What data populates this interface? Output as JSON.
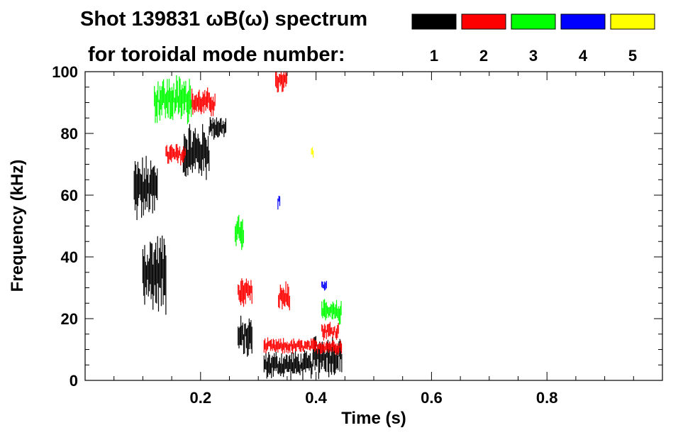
{
  "chart_data": {
    "type": "spectrogram",
    "title_line1": "Shot 139831 ωB(ω) spectrum",
    "title_line2": "for toroidal mode number:",
    "xlabel": "Time (s)",
    "ylabel": "Frequency (kHz)",
    "xlim": [
      0.0,
      1.0
    ],
    "ylim": [
      0,
      100
    ],
    "x_ticks": [
      {
        "value": 0.2,
        "label": "0.2"
      },
      {
        "value": 0.4,
        "label": "0.4"
      },
      {
        "value": 0.6,
        "label": "0.6"
      },
      {
        "value": 0.8,
        "label": "0.8"
      }
    ],
    "y_ticks": [
      {
        "value": 0,
        "label": "0"
      },
      {
        "value": 20,
        "label": "20"
      },
      {
        "value": 40,
        "label": "40"
      },
      {
        "value": 60,
        "label": "60"
      },
      {
        "value": 80,
        "label": "80"
      },
      {
        "value": 100,
        "label": "100"
      }
    ],
    "legend": [
      {
        "mode": "1",
        "color": "#000000"
      },
      {
        "mode": "2",
        "color": "#ff0000"
      },
      {
        "mode": "3",
        "color": "#00ff00"
      },
      {
        "mode": "4",
        "color": "#0000ff"
      },
      {
        "mode": "5",
        "color": "#ffff00"
      }
    ],
    "series": [
      {
        "name": "n=1",
        "mode": 1,
        "color": "#000000",
        "segments": [
          {
            "t_start": 0.085,
            "t_end": 0.125,
            "f_center": 62,
            "f_band": 16
          },
          {
            "t_start": 0.1,
            "t_end": 0.14,
            "f_center": 35,
            "f_band": 20
          },
          {
            "t_start": 0.17,
            "t_end": 0.215,
            "f_center": 74,
            "f_band": 14
          },
          {
            "t_start": 0.215,
            "t_end": 0.245,
            "f_center": 82,
            "f_band": 6
          },
          {
            "t_start": 0.265,
            "t_end": 0.29,
            "f_center": 14,
            "f_band": 10
          },
          {
            "t_start": 0.31,
            "t_end": 0.395,
            "f_center": 5,
            "f_band": 7
          },
          {
            "t_start": 0.395,
            "t_end": 0.445,
            "f_center": 8,
            "f_band": 11
          }
        ]
      },
      {
        "name": "n=2",
        "mode": 2,
        "color": "#ff0000",
        "segments": [
          {
            "t_start": 0.185,
            "t_end": 0.225,
            "f_center": 90,
            "f_band": 7
          },
          {
            "t_start": 0.14,
            "t_end": 0.175,
            "f_center": 73,
            "f_band": 6
          },
          {
            "t_start": 0.265,
            "t_end": 0.29,
            "f_center": 29,
            "f_band": 8
          },
          {
            "t_start": 0.33,
            "t_end": 0.35,
            "f_center": 97,
            "f_band": 6
          },
          {
            "t_start": 0.335,
            "t_end": 0.355,
            "f_center": 27,
            "f_band": 8
          },
          {
            "t_start": 0.31,
            "t_end": 0.445,
            "f_center": 11,
            "f_band": 4
          },
          {
            "t_start": 0.41,
            "t_end": 0.44,
            "f_center": 16,
            "f_band": 5
          }
        ]
      },
      {
        "name": "n=3",
        "mode": 3,
        "color": "#00ff00",
        "segments": [
          {
            "t_start": 0.12,
            "t_end": 0.185,
            "f_center": 91,
            "f_band": 12
          },
          {
            "t_start": 0.26,
            "t_end": 0.275,
            "f_center": 49,
            "f_band": 10
          },
          {
            "t_start": 0.41,
            "t_end": 0.445,
            "f_center": 22,
            "f_band": 6
          }
        ]
      },
      {
        "name": "n=4",
        "mode": 4,
        "color": "#0000ff",
        "segments": [
          {
            "t_start": 0.334,
            "t_end": 0.338,
            "f_center": 58,
            "f_band": 4
          },
          {
            "t_start": 0.41,
            "t_end": 0.418,
            "f_center": 31,
            "f_band": 3
          }
        ]
      },
      {
        "name": "n=5",
        "mode": 5,
        "color": "#ffff00",
        "segments": [
          {
            "t_start": 0.392,
            "t_end": 0.396,
            "f_center": 74,
            "f_band": 3
          }
        ]
      }
    ]
  }
}
